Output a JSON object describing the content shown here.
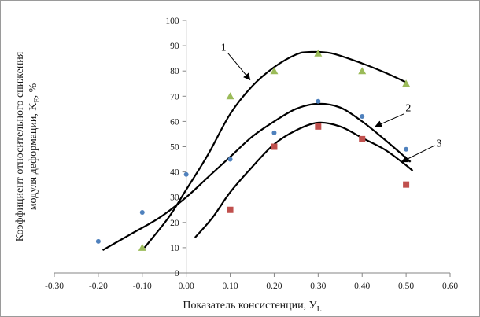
{
  "chart_data": {
    "type": "scatter",
    "xlabel": "Показатель консистенции, ",
    "xlabel_symbol": "У",
    "xlabel_sub": "L",
    "ylabel_line1": "Коэффициент относительного снижения",
    "ylabel_line2": "модуля деформации, K",
    "ylabel_sub": "E",
    "ylabel_tail": ", %",
    "xlim": [
      -0.3,
      0.6
    ],
    "ylim": [
      0,
      100
    ],
    "x_ticks": [
      {
        "value": -0.3,
        "label": "-0.30"
      },
      {
        "value": -0.2,
        "label": "-0.20"
      },
      {
        "value": -0.1,
        "label": "-0.10"
      },
      {
        "value": 0.0,
        "label": "0.00"
      },
      {
        "value": 0.1,
        "label": "0.10"
      },
      {
        "value": 0.2,
        "label": "0.20"
      },
      {
        "value": 0.3,
        "label": "0.30"
      },
      {
        "value": 0.4,
        "label": "0.40"
      },
      {
        "value": 0.5,
        "label": "0.50"
      },
      {
        "value": 0.6,
        "label": "0.60"
      }
    ],
    "y_ticks": [
      {
        "value": 0,
        "label": "0"
      },
      {
        "value": 10,
        "label": "10"
      },
      {
        "value": 20,
        "label": "20"
      },
      {
        "value": 30,
        "label": "30"
      },
      {
        "value": 40,
        "label": "40"
      },
      {
        "value": 50,
        "label": "50"
      },
      {
        "value": 60,
        "label": "60"
      },
      {
        "value": 70,
        "label": "70"
      },
      {
        "value": 80,
        "label": "80"
      },
      {
        "value": 90,
        "label": "90"
      },
      {
        "value": 100,
        "label": "100"
      }
    ],
    "grid": false,
    "axes_cross_at": {
      "x": 0,
      "y": 0
    },
    "series": [
      {
        "marker": "circle",
        "color": "#4f81bd",
        "points": [
          [
            -0.2,
            12.5
          ],
          [
            -0.1,
            24
          ],
          [
            0.0,
            39
          ],
          [
            0.1,
            45
          ],
          [
            0.2,
            55.5
          ],
          [
            0.3,
            68
          ],
          [
            0.4,
            62
          ],
          [
            0.5,
            49
          ]
        ]
      },
      {
        "marker": "square",
        "color": "#c0504d",
        "points": [
          [
            0.1,
            25
          ],
          [
            0.2,
            50
          ],
          [
            0.3,
            58
          ],
          [
            0.4,
            53
          ],
          [
            0.5,
            35
          ]
        ]
      },
      {
        "marker": "triangle",
        "color": "#9bbb59",
        "points": [
          [
            -0.1,
            10
          ],
          [
            0.1,
            70
          ],
          [
            0.2,
            80
          ],
          [
            0.3,
            87
          ],
          [
            0.4,
            80
          ],
          [
            0.5,
            75
          ]
        ]
      }
    ],
    "curves": [
      {
        "label": "1",
        "points": [
          [
            -0.095,
            10
          ],
          [
            -0.04,
            22
          ],
          [
            0.0,
            33
          ],
          [
            0.05,
            47
          ],
          [
            0.1,
            63
          ],
          [
            0.15,
            74
          ],
          [
            0.2,
            81.5
          ],
          [
            0.25,
            86.5
          ],
          [
            0.28,
            87.5
          ],
          [
            0.33,
            87
          ],
          [
            0.4,
            83
          ],
          [
            0.45,
            79.5
          ],
          [
            0.5,
            75.5
          ]
        ],
        "label_at": [
          0.085,
          88
        ],
        "arrow_from": [
          0.095,
          87
        ],
        "arrow_to": [
          0.145,
          76.5
        ]
      },
      {
        "label": "2",
        "points": [
          [
            -0.19,
            9
          ],
          [
            -0.13,
            15
          ],
          [
            -0.06,
            22
          ],
          [
            0.0,
            30
          ],
          [
            0.05,
            38
          ],
          [
            0.1,
            46
          ],
          [
            0.15,
            54
          ],
          [
            0.2,
            60
          ],
          [
            0.25,
            65
          ],
          [
            0.3,
            67
          ],
          [
            0.35,
            65.5
          ],
          [
            0.4,
            60
          ],
          [
            0.45,
            53
          ],
          [
            0.51,
            44
          ]
        ],
        "label_at": [
          0.505,
          64
        ],
        "arrow_from": [
          0.495,
          63
        ],
        "arrow_to": [
          0.43,
          58
        ]
      },
      {
        "label": "3",
        "points": [
          [
            0.02,
            14
          ],
          [
            0.06,
            22
          ],
          [
            0.1,
            32
          ],
          [
            0.15,
            42
          ],
          [
            0.2,
            51
          ],
          [
            0.25,
            56.5
          ],
          [
            0.3,
            59.5
          ],
          [
            0.35,
            58
          ],
          [
            0.4,
            53.5
          ],
          [
            0.45,
            49
          ],
          [
            0.49,
            44
          ],
          [
            0.515,
            40.5
          ]
        ],
        "label_at": [
          0.575,
          50
        ],
        "arrow_from": [
          0.565,
          50.5
        ],
        "arrow_to": [
          0.49,
          44
        ]
      }
    ]
  }
}
